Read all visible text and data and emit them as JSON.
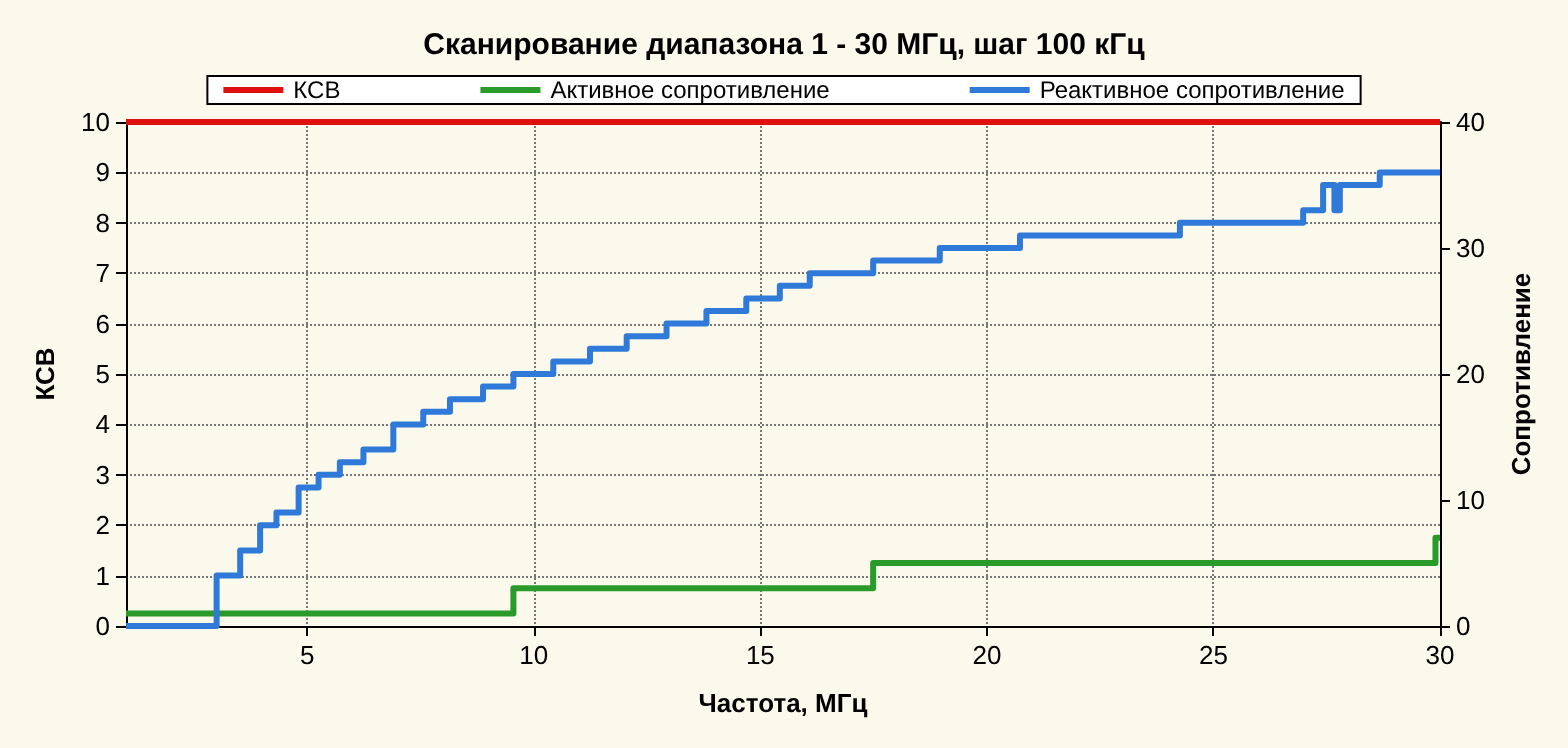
{
  "chart_data": {
    "type": "step",
    "title": "Сканирование диапазона 1 - 30 МГц, шаг 100 кГц",
    "xlabel": "Частота, МГц",
    "ylabel": "КСВ",
    "y2label": "Сопротивление",
    "xlim": [
      1,
      30
    ],
    "xticks": [
      5,
      10,
      15,
      20,
      25,
      30
    ],
    "ylim": [
      0,
      10
    ],
    "yticks": [
      0,
      1,
      2,
      3,
      4,
      5,
      6,
      7,
      8,
      9,
      10
    ],
    "y2lim": [
      0,
      40
    ],
    "y2ticks": [
      0,
      10,
      20,
      30,
      40
    ],
    "grid": true,
    "legend": "top",
    "line_style": "solid",
    "marker": "none",
    "series": [
      {
        "name": "КСВ",
        "color": "#e01010",
        "x": [
          1,
          30
        ],
        "values": [
          10,
          10
        ]
      },
      {
        "name": "Активное сопротивление",
        "color": "#2a9a2a",
        "axis": "y2",
        "x": [
          1,
          9.55,
          17.49,
          29.9,
          30
        ],
        "values": [
          1,
          3,
          5,
          7,
          7
        ]
      },
      {
        "name": "Реактивное сопротивление",
        "color": "#2f7ad8",
        "axis": "y2",
        "x": [
          1,
          3.0,
          3.52,
          3.96,
          4.32,
          4.81,
          5.25,
          5.72,
          6.24,
          6.9,
          7.56,
          8.15,
          8.88,
          9.55,
          10.43,
          11.24,
          12.05,
          12.93,
          13.81,
          14.69,
          15.43,
          16.09,
          17.49,
          18.96,
          20.73,
          24.26,
          26.98,
          27.42,
          27.57,
          27.67,
          27.79,
          28.67,
          30
        ],
        "values": [
          0,
          4,
          6,
          8,
          9,
          11,
          12,
          13,
          14,
          16,
          17,
          18,
          19,
          20,
          21,
          22,
          23,
          24,
          25,
          26,
          27,
          28,
          29,
          30,
          31,
          32,
          33,
          35,
          35,
          33,
          35,
          36,
          36
        ]
      }
    ]
  }
}
